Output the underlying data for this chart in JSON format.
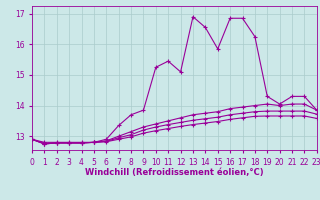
{
  "xlabel": "Windchill (Refroidissement éolien,°C)",
  "background_color": "#cce8e8",
  "grid_color": "#aacccc",
  "line_color": "#990099",
  "x_hours": [
    0,
    1,
    2,
    3,
    4,
    5,
    6,
    7,
    8,
    9,
    10,
    11,
    12,
    13,
    14,
    15,
    16,
    17,
    18,
    19,
    20,
    21,
    22,
    23
  ],
  "series": [
    [
      12.9,
      12.8,
      12.8,
      12.8,
      12.8,
      12.8,
      12.9,
      13.35,
      13.7,
      13.85,
      15.25,
      15.45,
      15.1,
      16.9,
      16.55,
      15.85,
      16.85,
      16.85,
      16.25,
      14.3,
      14.05,
      14.3,
      14.3,
      13.85
    ],
    [
      12.9,
      12.75,
      12.78,
      12.78,
      12.78,
      12.8,
      12.85,
      13.0,
      13.15,
      13.3,
      13.4,
      13.5,
      13.6,
      13.7,
      13.75,
      13.8,
      13.9,
      13.95,
      14.0,
      14.05,
      14.0,
      14.05,
      14.05,
      13.85
    ],
    [
      12.9,
      12.75,
      12.78,
      12.78,
      12.78,
      12.8,
      12.83,
      12.95,
      13.05,
      13.2,
      13.3,
      13.38,
      13.45,
      13.52,
      13.57,
      13.62,
      13.7,
      13.75,
      13.8,
      13.82,
      13.82,
      13.82,
      13.82,
      13.72
    ],
    [
      12.9,
      12.75,
      12.78,
      12.78,
      12.78,
      12.8,
      12.82,
      12.9,
      12.98,
      13.1,
      13.18,
      13.25,
      13.32,
      13.38,
      13.43,
      13.48,
      13.55,
      13.6,
      13.65,
      13.66,
      13.66,
      13.66,
      13.66,
      13.58
    ]
  ],
  "ylim": [
    12.55,
    17.25
  ],
  "yticks": [
    13,
    14,
    15,
    16,
    17
  ],
  "xlim": [
    0,
    23
  ],
  "xtick_labels": [
    "0",
    "1",
    "2",
    "3",
    "4",
    "5",
    "6",
    "7",
    "8",
    "9",
    "10",
    "11",
    "12",
    "13",
    "14",
    "15",
    "16",
    "17",
    "18",
    "19",
    "20",
    "21",
    "22",
    "23"
  ],
  "marker": "+",
  "markersize": 3,
  "linewidth": 0.8,
  "tick_fontsize": 5.5,
  "xlabel_fontsize": 6.0
}
